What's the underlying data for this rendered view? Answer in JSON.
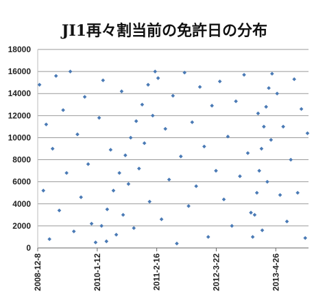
{
  "chart_data": {
    "type": "scatter",
    "title": "JI1再々割当前の免許日の分布",
    "color": "#4a7ab5",
    "grid": true,
    "xlim": [
      "2008-12-8",
      "2013-12-2"
    ],
    "xticks": [
      "2008-12-8",
      "2010-1-12",
      "2011-2-16",
      "2012-3-22",
      "2013-4-26"
    ],
    "ylim": [
      0,
      18000
    ],
    "yticks": [
      0,
      2000,
      4000,
      6000,
      8000,
      10000,
      12000,
      14000,
      16000,
      18000
    ],
    "x": [
      "2010-1-1",
      "2010-2-10",
      "2010-3-20",
      "2010-5-1",
      "2010-6-10",
      "2010-7-20",
      "2010-8-25",
      "2010-10-1",
      "2010-11-10",
      "2010-12-20",
      "2011-2-5",
      "2012-11-22",
      "2012-12-5",
      "2012-12-20",
      "2013-1-5",
      "2013-1-20",
      "2013-2-5",
      "2013-2-20",
      "2013-3-10",
      "2013-4-1",
      "2008-12-20",
      "2009-1-15",
      "2009-2-3",
      "2009-2-25",
      "2009-3-18",
      "2009-4-10",
      "2009-5-2",
      "2009-5-28",
      "2009-6-20",
      "2009-7-15",
      "2009-8-8",
      "2009-9-1",
      "2009-9-25",
      "2009-10-20",
      "2009-11-12",
      "2009-12-5",
      "2010-1-25",
      "2010-2-20",
      "2010-3-15",
      "2010-4-12",
      "2010-5-20",
      "2010-6-25",
      "2010-7-5",
      "2010-8-10",
      "2010-9-15",
      "2010-10-20",
      "2010-11-25",
      "2010-12-30",
      "2011-1-20",
      "2011-2-25",
      "2011-3-20",
      "2011-4-15",
      "2011-5-10",
      "2011-6-5",
      "2011-7-1",
      "2011-7-28",
      "2011-8-22",
      "2011-9-18",
      "2011-10-12",
      "2011-11-8",
      "2011-12-3",
      "2012-1-1",
      "2012-1-28",
      "2012-2-22",
      "2012-3-20",
      "2012-4-15",
      "2012-5-12",
      "2012-6-8",
      "2012-7-5",
      "2012-8-1",
      "2012-8-28",
      "2012-9-25",
      "2012-10-20",
      "2012-11-10",
      "2012-12-28",
      "2013-1-25",
      "2013-2-28",
      "2013-3-25",
      "2013-5-5",
      "2013-5-25",
      "2013-6-15",
      "2013-7-10",
      "2013-8-5",
      "2013-8-28",
      "2013-9-20",
      "2013-10-15",
      "2013-11-10",
      "2013-11-25"
    ],
    "values": [
      500,
      2000,
      3500,
      5200,
      6800,
      8400,
      10000,
      11500,
      13000,
      14800,
      16000,
      1000,
      3000,
      5000,
      7000,
      9000,
      11000,
      12800,
      14500,
      15800,
      14800,
      5200,
      11200,
      800,
      9000,
      15600,
      3400,
      12500,
      6800,
      16000,
      1500,
      10300,
      4600,
      13700,
      7600,
      2200,
      11800,
      15200,
      600,
      8900,
      1200,
      14200,
      3000,
      5800,
      1800,
      7200,
      9500,
      4200,
      12000,
      15400,
      2600,
      10800,
      6200,
      13800,
      400,
      8300,
      15900,
      3800,
      11400,
      5600,
      14600,
      9200,
      1000,
      12900,
      7000,
      15100,
      4400,
      10100,
      2000,
      13300,
      6500,
      15700,
      8600,
      3200,
      12200,
      1600,
      6000,
      9800,
      14000,
      4800,
      11000,
      2400,
      8000,
      15300,
      5000,
      12600,
      900,
      10400
    ]
  }
}
